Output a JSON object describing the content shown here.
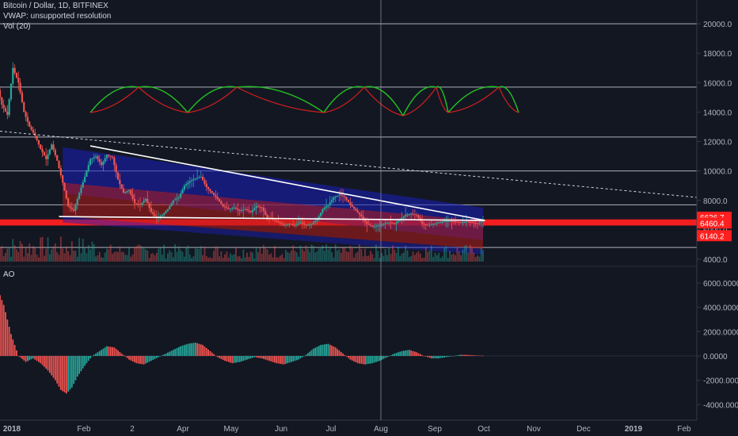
{
  "header": {
    "symbol_line": "Bitcoin / Dollar, 1D, BITFINEX",
    "vwap_line": "VWAP: unsupported resolution",
    "vol_line": "Vol (20)",
    "ao_label": "AO"
  },
  "colors": {
    "background": "#131722",
    "bull": "#26a69a",
    "bear": "#ef5350",
    "channel_blue": "#1a1fbf",
    "channel_red": "#b71c1c",
    "arc_green": "#22c322",
    "arc_red": "#d11f1f",
    "price_tag": "#ff1f1f"
  },
  "chart_data": [
    {
      "type": "candlestick",
      "title": "Bitcoin / Dollar, 1D, BITFINEX",
      "ylim": [
        4000,
        21000
      ],
      "y_ticks": [
        "4000.0",
        "6000.0",
        "8000.0",
        "10000.0",
        "12000.0",
        "14000.0",
        "16000.0",
        "18000.0",
        "20000.0"
      ],
      "x_ticks": [
        "2018",
        "Feb",
        "2",
        "Apr",
        "May",
        "Jun",
        "Jul",
        "Aug",
        "Sep",
        "Oct",
        "Nov",
        "Dec",
        "2019",
        "Feb"
      ],
      "price_tags": [
        {
          "value": "6636.7",
          "price": 6636.7
        },
        {
          "value": "6460.4",
          "price": 6460.4
        },
        {
          "value": "6140.2",
          "price": 6140.2
        }
      ],
      "horizontal_levels": [
        20000,
        15700,
        12300,
        10000,
        7700,
        6600,
        6400,
        4800
      ],
      "close_path": [
        [
          0,
          16500
        ],
        [
          3,
          18900
        ],
        [
          6,
          16000
        ],
        [
          9,
          14500
        ],
        [
          12,
          13800
        ],
        [
          15,
          17000
        ],
        [
          18,
          16000
        ],
        [
          21,
          14000
        ],
        [
          24,
          13000
        ],
        [
          27,
          12400
        ],
        [
          30,
          11500
        ],
        [
          33,
          10800
        ],
        [
          36,
          11800
        ],
        [
          39,
          10700
        ],
        [
          42,
          9200
        ],
        [
          45,
          7600
        ],
        [
          48,
          7300
        ],
        [
          51,
          8500
        ],
        [
          54,
          9600
        ],
        [
          57,
          10800
        ],
        [
          60,
          11000
        ],
        [
          63,
          10400
        ],
        [
          66,
          11100
        ],
        [
          69,
          10900
        ],
        [
          72,
          9400
        ],
        [
          75,
          8500
        ],
        [
          78,
          8700
        ],
        [
          81,
          7800
        ],
        [
          84,
          7700
        ],
        [
          87,
          8100
        ],
        [
          90,
          7200
        ],
        [
          93,
          6800
        ],
        [
          96,
          7000
        ],
        [
          99,
          7400
        ],
        [
          102,
          8000
        ],
        [
          105,
          8200
        ],
        [
          108,
          9000
        ],
        [
          111,
          9300
        ],
        [
          114,
          9500
        ],
        [
          117,
          9600
        ],
        [
          120,
          8900
        ],
        [
          123,
          8500
        ],
        [
          126,
          8100
        ],
        [
          129,
          7600
        ],
        [
          132,
          7400
        ],
        [
          135,
          7500
        ],
        [
          138,
          7300
        ],
        [
          141,
          7400
        ],
        [
          144,
          7200
        ],
        [
          147,
          7600
        ],
        [
          150,
          7500
        ],
        [
          153,
          6800
        ],
        [
          156,
          6700
        ],
        [
          159,
          6500
        ],
        [
          162,
          6300
        ],
        [
          165,
          6400
        ],
        [
          168,
          6300
        ],
        [
          171,
          6500
        ],
        [
          174,
          6300
        ],
        [
          177,
          6400
        ],
        [
          180,
          6700
        ],
        [
          183,
          7400
        ],
        [
          186,
          7700
        ],
        [
          189,
          8200
        ],
        [
          192,
          8400
        ],
        [
          195,
          8200
        ],
        [
          198,
          7700
        ],
        [
          201,
          7300
        ],
        [
          204,
          6900
        ],
        [
          207,
          6400
        ],
        [
          210,
          6200
        ],
        [
          213,
          6300
        ],
        [
          216,
          6400
        ],
        [
          219,
          6500
        ],
        [
          222,
          6400
        ],
        [
          225,
          6700
        ],
        [
          228,
          7000
        ],
        [
          231,
          7100
        ],
        [
          234,
          7000
        ],
        [
          237,
          6400
        ],
        [
          240,
          6300
        ],
        [
          243,
          6400
        ],
        [
          246,
          6500
        ],
        [
          249,
          6600
        ],
        [
          252,
          6600
        ],
        [
          255,
          6550
        ],
        [
          258,
          6500
        ],
        [
          261,
          6550
        ],
        [
          264,
          6500
        ],
        [
          267,
          6450
        ],
        [
          270,
          6600
        ]
      ]
    },
    {
      "type": "bar",
      "title": "AO",
      "ylim": [
        -5000,
        7000
      ],
      "y_ticks": [
        "6000.0000",
        "4000.0000",
        "2000.0000",
        "0.0000",
        "-2000.0000",
        "-4000.0000"
      ],
      "ao_path": [
        [
          0,
          6300
        ],
        [
          6,
          5800
        ],
        [
          10,
          4200
        ],
        [
          14,
          1800
        ],
        [
          18,
          0
        ],
        [
          22,
          -500
        ],
        [
          26,
          -200
        ],
        [
          30,
          -600
        ],
        [
          34,
          -1200
        ],
        [
          38,
          -2000
        ],
        [
          41,
          -2800
        ],
        [
          44,
          -3100
        ],
        [
          47,
          -2600
        ],
        [
          50,
          -1700
        ],
        [
          54,
          -800
        ],
        [
          58,
          0
        ],
        [
          62,
          400
        ],
        [
          66,
          800
        ],
        [
          70,
          700
        ],
        [
          74,
          200
        ],
        [
          78,
          -300
        ],
        [
          82,
          -600
        ],
        [
          86,
          -700
        ],
        [
          90,
          -400
        ],
        [
          94,
          -100
        ],
        [
          98,
          200
        ],
        [
          102,
          500
        ],
        [
          106,
          800
        ],
        [
          110,
          1000
        ],
        [
          114,
          1100
        ],
        [
          118,
          900
        ],
        [
          122,
          400
        ],
        [
          126,
          -100
        ],
        [
          130,
          -400
        ],
        [
          134,
          -600
        ],
        [
          138,
          -500
        ],
        [
          142,
          -300
        ],
        [
          146,
          -100
        ],
        [
          150,
          -200
        ],
        [
          154,
          -400
        ],
        [
          158,
          -600
        ],
        [
          162,
          -700
        ],
        [
          166,
          -500
        ],
        [
          170,
          -300
        ],
        [
          174,
          100
        ],
        [
          178,
          600
        ],
        [
          182,
          900
        ],
        [
          186,
          1000
        ],
        [
          190,
          700
        ],
        [
          194,
          200
        ],
        [
          198,
          -300
        ],
        [
          202,
          -600
        ],
        [
          206,
          -700
        ],
        [
          210,
          -600
        ],
        [
          214,
          -400
        ],
        [
          218,
          -100
        ],
        [
          222,
          200
        ],
        [
          226,
          400
        ],
        [
          230,
          500
        ],
        [
          234,
          300
        ],
        [
          238,
          0
        ],
        [
          242,
          -200
        ],
        [
          246,
          -200
        ],
        [
          250,
          -100
        ],
        [
          254,
          0
        ],
        [
          258,
          100
        ],
        [
          262,
          80
        ],
        [
          266,
          40
        ],
        [
          270,
          20
        ]
      ]
    }
  ]
}
